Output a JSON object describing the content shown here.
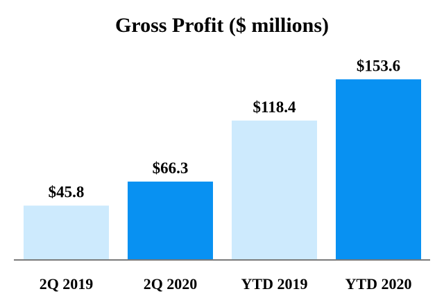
{
  "colors": {
    "light": "#cdeafd",
    "dark": "#0891f2",
    "axis": "#7a7a7a"
  },
  "chart_data": {
    "type": "bar",
    "title": "Gross Profit ($ millions)",
    "xlabel": "",
    "ylabel": "",
    "ylim": [
      0,
      160
    ],
    "grid": false,
    "categories": [
      "2Q 2019",
      "2Q 2020",
      "YTD 2019",
      "YTD 2020"
    ],
    "values": [
      45.8,
      66.3,
      118.4,
      153.6
    ],
    "value_labels": [
      "$45.8",
      "$66.3",
      "$118.4",
      "$153.6"
    ],
    "bar_colors": [
      "light",
      "dark",
      "light",
      "dark"
    ]
  }
}
